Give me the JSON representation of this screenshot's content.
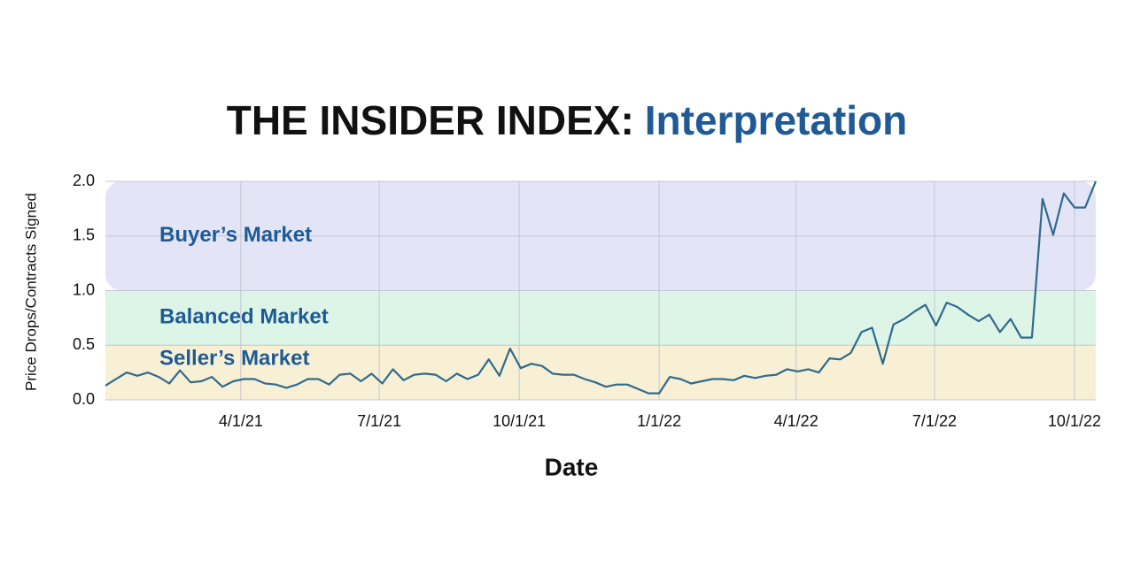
{
  "chart_data": {
    "type": "line",
    "title": "THE INSIDER INDEX:",
    "subtitle": "Interpretation",
    "x_label": "Date",
    "y_label": "Price Drops/Contracts Signed",
    "line_color": "#2f6a8e",
    "grid": true,
    "xlim": [
      "1/2/21",
      "10/15/22"
    ],
    "xticks": [
      "4/1/21",
      "7/1/21",
      "10/1/21",
      "1/1/22",
      "4/1/22",
      "7/1/22",
      "10/1/22"
    ],
    "ylim": [
      0,
      2
    ],
    "yticks": [
      {
        "value": 0,
        "label": "0.0"
      },
      0.5,
      {
        "value": 1,
        "label": "1.0"
      },
      1.5,
      {
        "value": 2,
        "label": "2.0"
      }
    ],
    "bands": [
      {
        "label": "Buyer’s Market",
        "from": 1,
        "to": 2,
        "color": "#e3e5f6"
      },
      {
        "label": "Balanced Market",
        "from": 0.5,
        "to": 1,
        "color": "#ddf5e6"
      },
      {
        "label": "Seller’s Market",
        "from": 0,
        "to": 0.5,
        "color": "#f8f0d4"
      }
    ],
    "x": [
      "1/2/21",
      "1/9/21",
      "1/16/21",
      "1/23/21",
      "1/30/21",
      "2/6/21",
      "2/13/21",
      "2/20/21",
      "2/27/21",
      "3/6/21",
      "3/13/21",
      "3/20/21",
      "3/27/21",
      "4/3/21",
      "4/10/21",
      "4/17/21",
      "4/24/21",
      "5/1/21",
      "5/8/21",
      "5/15/21",
      "5/22/21",
      "5/29/21",
      "6/5/21",
      "6/12/21",
      "6/19/21",
      "6/26/21",
      "7/3/21",
      "7/10/21",
      "7/17/21",
      "7/24/21",
      "7/31/21",
      "8/7/21",
      "8/14/21",
      "8/21/21",
      "8/28/21",
      "9/4/21",
      "9/11/21",
      "9/18/21",
      "9/25/21",
      "10/2/21",
      "10/9/21",
      "10/16/21",
      "10/23/21",
      "10/30/21",
      "11/6/21",
      "11/13/21",
      "11/20/21",
      "11/27/21",
      "12/4/21",
      "12/11/21",
      "12/18/21",
      "12/25/21",
      "1/1/22",
      "1/8/22",
      "1/15/22",
      "1/22/22",
      "1/29/22",
      "2/5/22",
      "2/12/22",
      "2/19/22",
      "2/26/22",
      "3/5/22",
      "3/12/22",
      "3/19/22",
      "3/26/22",
      "4/2/22",
      "4/9/22",
      "4/16/22",
      "4/23/22",
      "4/30/22",
      "5/7/22",
      "5/14/22",
      "5/21/22",
      "5/28/22",
      "6/4/22",
      "6/11/22",
      "6/18/22",
      "6/25/22",
      "7/2/22",
      "7/9/22",
      "7/16/22",
      "7/23/22",
      "7/30/22",
      "8/6/22",
      "8/13/22",
      "8/20/22",
      "8/27/22",
      "9/3/22",
      "9/10/22",
      "9/17/22",
      "9/24/22",
      "10/1/22",
      "10/8/22",
      "10/15/22"
    ],
    "values": [
      0.13,
      0.19,
      0.25,
      0.22,
      0.25,
      0.21,
      0.15,
      0.27,
      0.16,
      0.17,
      0.21,
      0.12,
      0.17,
      0.19,
      0.19,
      0.15,
      0.14,
      0.11,
      0.14,
      0.19,
      0.19,
      0.14,
      0.23,
      0.24,
      0.17,
      0.24,
      0.15,
      0.28,
      0.18,
      0.23,
      0.24,
      0.23,
      0.17,
      0.24,
      0.19,
      0.23,
      0.37,
      0.22,
      0.47,
      0.29,
      0.33,
      0.31,
      0.24,
      0.23,
      0.23,
      0.19,
      0.16,
      0.12,
      0.14,
      0.14,
      0.1,
      0.06,
      0.06,
      0.21,
      0.19,
      0.15,
      0.17,
      0.19,
      0.19,
      0.18,
      0.22,
      0.2,
      0.22,
      0.23,
      0.28,
      0.26,
      0.28,
      0.25,
      0.38,
      0.37,
      0.43,
      0.62,
      0.66,
      0.33,
      0.69,
      0.74,
      0.81,
      0.87,
      0.68,
      0.89,
      0.85,
      0.78,
      0.72,
      0.78,
      0.62,
      0.74,
      0.57,
      0.57,
      1.84,
      1.51,
      1.89,
      1.76,
      1.76,
      2.0
    ]
  }
}
